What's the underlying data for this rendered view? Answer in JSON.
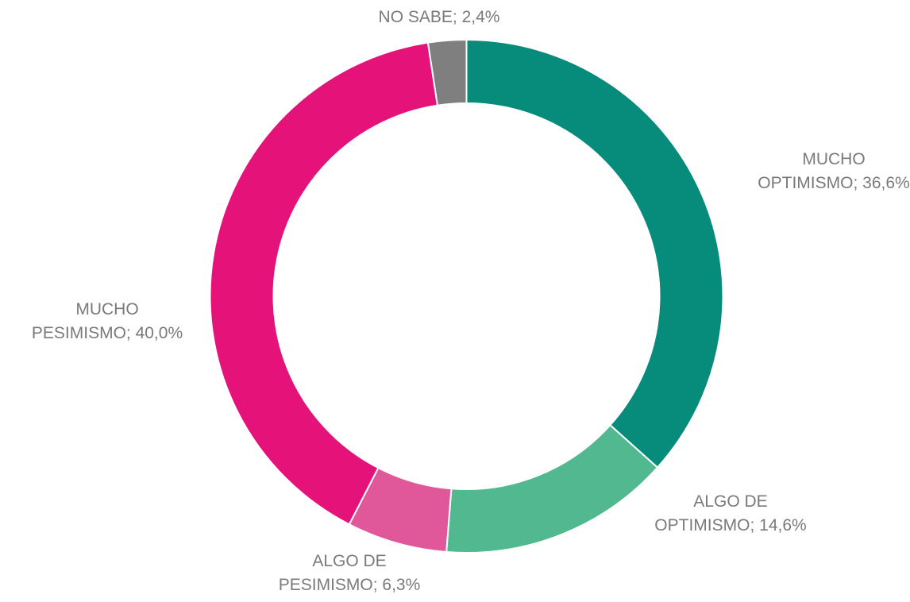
{
  "chart_data": {
    "type": "donut",
    "values": [
      36.6,
      14.6,
      6.3,
      40.0,
      2.4
    ],
    "value_labels": [
      "MUCHO\nOPTIMISMO; 36,6%",
      "ALGO DE\nOPTIMISMO; 14,6%",
      "ALGO DE\nPESIMISMO; 6,3%",
      "MUCHO\nPESIMISMO; 40,0%",
      "NO SABE; 2,4%"
    ],
    "colors": [
      "#078c7c",
      "#52b88f",
      "#e0579a",
      "#e5127a",
      "#7f7f7f"
    ]
  }
}
